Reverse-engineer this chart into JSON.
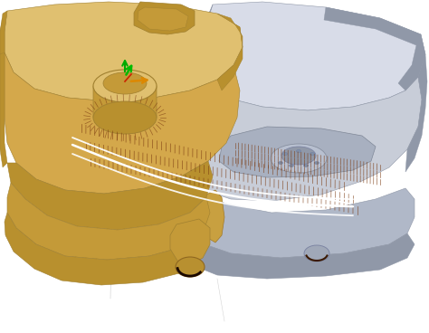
{
  "background_color": "#ffffff",
  "figure_width": 4.74,
  "figure_height": 3.68,
  "dpi": 100,
  "gold": "#D4A84B",
  "gold_dark": "#B8902E",
  "gold_mid": "#C49A38",
  "gold_light": "#E0C070",
  "silver": "#C8CDD8",
  "silver_dark": "#9098A8",
  "silver_mid": "#B0B8C8",
  "silver_light": "#D8DCE8",
  "brown": "#7B3A10",
  "white": "#FFFFFF",
  "green1": "#00BB00",
  "green2": "#00AA00",
  "orange": "#DD8800",
  "red_axis": "#CC2200"
}
